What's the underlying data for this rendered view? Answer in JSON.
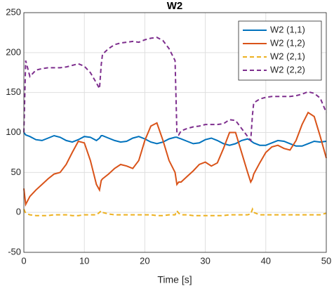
{
  "chart_data": {
    "type": "line",
    "title": "W2",
    "x_label": "Time [s]",
    "x": [
      0,
      0.3,
      1,
      2,
      3,
      4,
      5,
      6,
      7,
      8,
      9,
      10,
      11,
      12,
      12.5,
      12.8,
      13,
      14,
      15,
      16,
      17,
      18,
      19,
      20,
      21,
      22,
      23,
      24,
      25,
      25.3,
      25.6,
      26,
      27,
      28,
      29,
      30,
      31,
      32,
      33,
      34,
      35,
      36,
      37,
      37.5,
      37.8,
      38,
      39,
      40,
      41,
      42,
      43,
      44,
      45,
      46,
      47,
      48,
      49,
      50
    ],
    "series": [
      {
        "name": "W2 (1,1)",
        "color": "#0072bd",
        "dash": false,
        "values": [
          100,
          97,
          95,
          91,
          90,
          93,
          96,
          94,
          90,
          88,
          91,
          95,
          94,
          90,
          93,
          96,
          96,
          93,
          90,
          88,
          89,
          93,
          95,
          92,
          88,
          86,
          88,
          92,
          94,
          94,
          93,
          92,
          89,
          86,
          87,
          91,
          93,
          90,
          86,
          84,
          86,
          90,
          92,
          90,
          88,
          87,
          84,
          84,
          87,
          90,
          89,
          86,
          83,
          83,
          86,
          89,
          88,
          89
        ]
      },
      {
        "name": "W2 (1,2)",
        "color": "#d95319",
        "dash": false,
        "values": [
          30,
          10,
          20,
          28,
          35,
          42,
          48,
          50,
          60,
          75,
          89,
          87,
          65,
          35,
          28,
          40,
          42,
          48,
          55,
          60,
          58,
          55,
          65,
          90,
          108,
          112,
          90,
          65,
          50,
          35,
          38,
          38,
          45,
          52,
          60,
          63,
          58,
          62,
          80,
          100,
          100,
          75,
          50,
          38,
          42,
          48,
          62,
          75,
          82,
          84,
          80,
          78,
          90,
          110,
          125,
          120,
          95,
          68
        ]
      },
      {
        "name": "W2 (2,1)",
        "color": "#edb120",
        "dash": true,
        "values": [
          4,
          -1,
          -3,
          -4,
          -4,
          -4,
          -3,
          -3,
          -3,
          -4,
          -4,
          -3,
          -3,
          -3,
          0,
          2,
          0,
          -2,
          -3,
          -3,
          -3,
          -3,
          -3,
          -3,
          -3,
          -4,
          -4,
          -3,
          -3,
          2,
          -1,
          -3,
          -3,
          -4,
          -4,
          -4,
          -4,
          -4,
          -4,
          -3,
          -3,
          -3,
          -3,
          -2,
          4,
          0,
          -3,
          -3,
          -3,
          -3,
          -3,
          -3,
          -3,
          -3,
          -3,
          -3,
          -3,
          -1
        ]
      },
      {
        "name": "W2 (2,2)",
        "color": "#7e2f8e",
        "dash": true,
        "values": [
          100,
          190,
          170,
          178,
          180,
          181,
          181,
          181,
          182,
          184,
          186,
          183,
          175,
          162,
          155,
          185,
          198,
          205,
          210,
          212,
          213,
          214,
          213,
          216,
          218,
          219,
          215,
          205,
          190,
          100,
          97,
          102,
          105,
          107,
          108,
          110,
          110,
          110,
          111,
          116,
          115,
          105,
          95,
          90,
          122,
          137,
          142,
          144,
          145,
          145,
          145,
          145,
          146,
          148,
          151,
          149,
          143,
          125
        ]
      }
    ],
    "xlim": [
      0,
      50
    ],
    "xticks": [
      0,
      10,
      20,
      30,
      40,
      50
    ],
    "ylim": [
      -50,
      250
    ],
    "yticks": [
      -50,
      0,
      50,
      100,
      150,
      200,
      250
    ],
    "grid": true,
    "legend": "top-right"
  }
}
